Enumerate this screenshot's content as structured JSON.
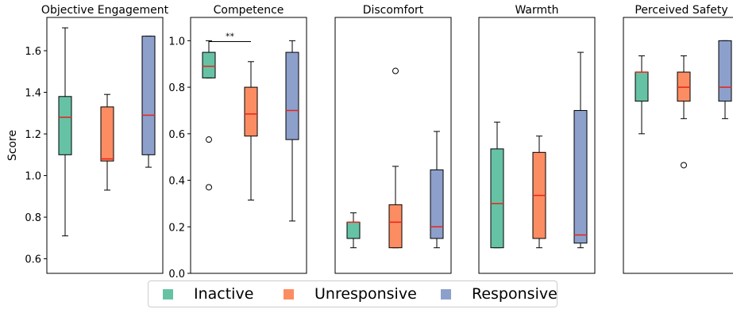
{
  "chart_data": [
    {
      "type": "box",
      "title": "Objective Engagement",
      "ylabel": "Score",
      "ylim": [
        0.53,
        1.76
      ],
      "yticks": [
        "0.6",
        "0.8",
        "1.0",
        "1.2",
        "1.4",
        "1.6"
      ],
      "boxes": [
        {
          "group": "Inactive",
          "whislo": 0.71,
          "q1": 1.1,
          "med": 1.28,
          "q3": 1.38,
          "whishi": 1.71,
          "fliers": []
        },
        {
          "group": "Unresponsive",
          "whislo": 0.93,
          "q1": 1.07,
          "med": 1.08,
          "q3": 1.33,
          "whishi": 1.39,
          "fliers": []
        },
        {
          "group": "Responsive",
          "whislo": 1.04,
          "q1": 1.1,
          "med": 1.29,
          "q3": 1.67,
          "whishi": 1.67,
          "fliers": []
        }
      ],
      "annotations": []
    },
    {
      "type": "box",
      "title": "Competence",
      "ylabel": "",
      "ylim": [
        0.0,
        1.1
      ],
      "yticks": [
        "0.0",
        "0.2",
        "0.4",
        "0.6",
        "0.8",
        "1.0"
      ],
      "boxes": [
        {
          "group": "Inactive",
          "whislo": 0.84,
          "q1": 0.84,
          "med": 0.89,
          "q3": 0.95,
          "whishi": 1.0,
          "fliers": [
            0.37,
            0.575
          ]
        },
        {
          "group": "Unresponsive",
          "whislo": 0.315,
          "q1": 0.59,
          "med": 0.685,
          "q3": 0.8,
          "whishi": 0.91,
          "fliers": []
        },
        {
          "group": "Responsive",
          "whislo": 0.225,
          "q1": 0.575,
          "med": 0.7,
          "q3": 0.95,
          "whishi": 1.0,
          "fliers": []
        }
      ],
      "annotations": [
        {
          "text": "**",
          "from": 0,
          "to": 1,
          "y": 1.02
        }
      ]
    },
    {
      "type": "box",
      "title": "Discomfort",
      "ylabel": "",
      "ylim": [
        0.0,
        1.1
      ],
      "yticks": [],
      "boxes": [
        {
          "group": "Inactive",
          "whislo": 0.11,
          "q1": 0.15,
          "med": 0.22,
          "q3": 0.22,
          "whishi": 0.26,
          "fliers": []
        },
        {
          "group": "Unresponsive",
          "whislo": 0.11,
          "q1": 0.11,
          "med": 0.22,
          "q3": 0.295,
          "whishi": 0.46,
          "fliers": [
            0.87
          ]
        },
        {
          "group": "Responsive",
          "whislo": 0.11,
          "q1": 0.15,
          "med": 0.2,
          "q3": 0.445,
          "whishi": 0.61,
          "fliers": []
        }
      ],
      "annotations": []
    },
    {
      "type": "box",
      "title": "Warmth",
      "ylabel": "",
      "ylim": [
        0.0,
        1.1
      ],
      "yticks": [],
      "boxes": [
        {
          "group": "Inactive",
          "whislo": 0.11,
          "q1": 0.11,
          "med": 0.3,
          "q3": 0.535,
          "whishi": 0.65,
          "fliers": []
        },
        {
          "group": "Unresponsive",
          "whislo": 0.11,
          "q1": 0.15,
          "med": 0.335,
          "q3": 0.52,
          "whishi": 0.59,
          "fliers": []
        },
        {
          "group": "Responsive",
          "whislo": 0.11,
          "q1": 0.13,
          "med": 0.165,
          "q3": 0.7,
          "whishi": 0.95,
          "fliers": []
        }
      ],
      "annotations": []
    },
    {
      "type": "box",
      "title": "Perceived Safety",
      "ylabel": "",
      "ylim": [
        0.0,
        1.1
      ],
      "yticks": [],
      "boxes": [
        {
          "group": "Inactive",
          "whislo": 0.6,
          "q1": 0.74,
          "med": 0.865,
          "q3": 0.865,
          "whishi": 0.935,
          "fliers": []
        },
        {
          "group": "Unresponsive",
          "whislo": 0.665,
          "q1": 0.74,
          "med": 0.8,
          "q3": 0.865,
          "whishi": 0.935,
          "fliers": [
            0.465
          ]
        },
        {
          "group": "Responsive",
          "whislo": 0.665,
          "q1": 0.74,
          "med": 0.8,
          "q3": 1.0,
          "whishi": 1.0,
          "fliers": []
        }
      ],
      "annotations": []
    }
  ],
  "legend": {
    "position": "bottom-center",
    "items": [
      {
        "label": "Inactive",
        "color": "#66c2a5"
      },
      {
        "label": "Unresponsive",
        "color": "#fc8d62"
      },
      {
        "label": "Responsive",
        "color": "#8da0cb"
      }
    ]
  },
  "colors": {
    "median": "#e8231a",
    "edge": "#000000"
  }
}
